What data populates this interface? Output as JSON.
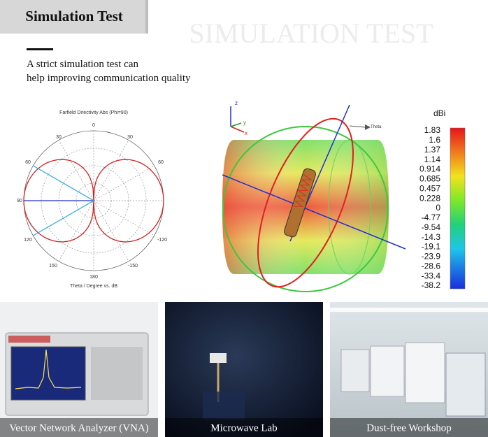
{
  "header": {
    "title": "Simulation Test",
    "watermark": "SIMULATION TEST",
    "description": [
      "A strict simulation test can",
      "help improving communication quality"
    ]
  },
  "polar_plot": {
    "title": "Farfield Directivity Abs (Phi=90)",
    "axis_label": "Theta / Degree vs. dB",
    "angle_labels": [
      "0",
      "30",
      "60",
      "90",
      "120",
      "150",
      "180",
      "30",
      "60",
      "-120",
      "-150"
    ]
  },
  "pattern_3d": {
    "axis_labels": [
      "z",
      "x",
      "y",
      "Theta"
    ],
    "colorbar": {
      "unit": "dBi",
      "labels": [
        "1.83",
        "1.6",
        "1.37",
        "1.14",
        "0.914",
        "0.685",
        "0.457",
        "0.228",
        "0",
        "-4.77",
        "-9.54",
        "-14.3",
        "-19.1",
        "-23.9",
        "-28.6",
        "-33.4",
        "-38.2"
      ]
    }
  },
  "photos": [
    {
      "caption": "Vector Network Analyzer (VNA)"
    },
    {
      "caption": "Microwave Lab"
    },
    {
      "caption": "Dust-free Workshop"
    }
  ]
}
